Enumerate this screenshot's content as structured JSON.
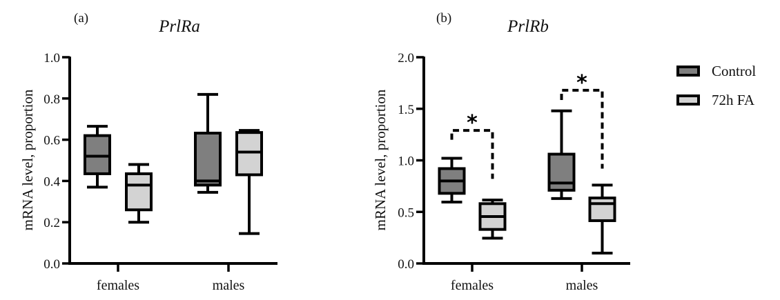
{
  "colors": {
    "control": "#7f7f7f",
    "fa": "#d3d3d3",
    "stroke": "#000000"
  },
  "legend": {
    "position": "right",
    "items": [
      {
        "label": "Control",
        "series": "control"
      },
      {
        "label": "72h FA",
        "series": "fa"
      }
    ]
  },
  "chart_data": [
    {
      "type": "box",
      "panel_label": "(a)",
      "title": "PrlRa",
      "xlabel": "",
      "ylabel": "mRNA level, proportion",
      "ylim": [
        0,
        1.0
      ],
      "yticks": [
        0.0,
        0.2,
        0.4,
        0.6,
        0.8,
        1.0
      ],
      "ytick_labels": [
        "0.0",
        "0.2",
        "0.4",
        "0.6",
        "0.8",
        "1.0"
      ],
      "categories": [
        "females",
        "males"
      ],
      "series": [
        {
          "name": "Control",
          "key": "control",
          "boxes": [
            {
              "min": 0.37,
              "q1": 0.435,
              "median": 0.52,
              "q3": 0.62,
              "max": 0.665
            },
            {
              "min": 0.345,
              "q1": 0.38,
              "median": 0.4,
              "q3": 0.632,
              "max": 0.82
            }
          ]
        },
        {
          "name": "72h FA",
          "key": "fa",
          "boxes": [
            {
              "min": 0.2,
              "q1": 0.26,
              "median": 0.38,
              "q3": 0.435,
              "max": 0.48
            },
            {
              "min": 0.145,
              "q1": 0.43,
              "median": 0.54,
              "q3": 0.635,
              "max": 0.645
            }
          ]
        }
      ],
      "significance": []
    },
    {
      "type": "box",
      "panel_label": "(b)",
      "title": "PrlRb",
      "xlabel": "",
      "ylabel": "mRNA level, proportion",
      "ylim": [
        0,
        2.0
      ],
      "yticks": [
        0.0,
        0.5,
        1.0,
        1.5,
        2.0
      ],
      "ytick_labels": [
        "0.0",
        "0.5",
        "1.0",
        "1.5",
        "2.0"
      ],
      "categories": [
        "females",
        "males"
      ],
      "series": [
        {
          "name": "Control",
          "key": "control",
          "boxes": [
            {
              "min": 0.595,
              "q1": 0.68,
              "median": 0.8,
              "q3": 0.92,
              "max": 1.02
            },
            {
              "min": 0.63,
              "q1": 0.71,
              "median": 0.78,
              "q3": 1.06,
              "max": 1.48
            }
          ]
        },
        {
          "name": "72h FA",
          "key": "fa",
          "boxes": [
            {
              "min": 0.245,
              "q1": 0.33,
              "median": 0.455,
              "q3": 0.58,
              "max": 0.615
            },
            {
              "min": 0.1,
              "q1": 0.415,
              "median": 0.58,
              "q3": 0.635,
              "max": 0.76
            }
          ]
        }
      ],
      "significance": [
        {
          "category": "females",
          "label": "*",
          "bracket_y": 1.29,
          "left_end": 1.2,
          "right_end": 0.82
        },
        {
          "category": "males",
          "label": "*",
          "bracket_y": 1.68,
          "left_end": 1.585,
          "right_end": 0.92
        }
      ]
    }
  ]
}
